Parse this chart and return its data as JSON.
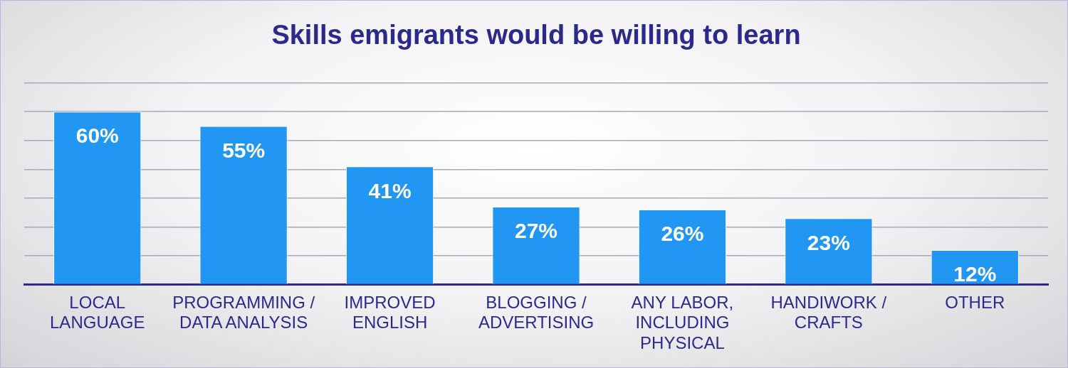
{
  "chart_data": {
    "type": "bar",
    "title": "Skills emigrants would be willing to learn",
    "categories": [
      "LOCAL LANGUAGE",
      "PROGRAMMING / DATA ANALYSIS",
      "IMPROVED ENGLISH",
      "BLOGGING / ADVERTISING",
      "ANY LABOR, INCLUDING PHYSICAL",
      "HANDIWORK / CRAFTS",
      "OTHER"
    ],
    "values": [
      60,
      55,
      41,
      27,
      26,
      23,
      12
    ],
    "value_labels": [
      "60%",
      "55%",
      "41%",
      "27%",
      "26%",
      "23%",
      "12%"
    ],
    "color": "#2196f3",
    "ylim": [
      0,
      70
    ],
    "yticks": [
      {
        "value": 0,
        "label": null
      },
      {
        "value": 10,
        "label": null
      },
      {
        "value": 20,
        "label": null
      },
      {
        "value": 30,
        "label": null
      },
      {
        "value": 40,
        "label": null
      },
      {
        "value": 50,
        "label": null
      },
      {
        "value": 60,
        "label": null
      },
      {
        "value": 70,
        "label": null
      }
    ],
    "grid": "y",
    "legend": false,
    "tick_labels": "x"
  }
}
